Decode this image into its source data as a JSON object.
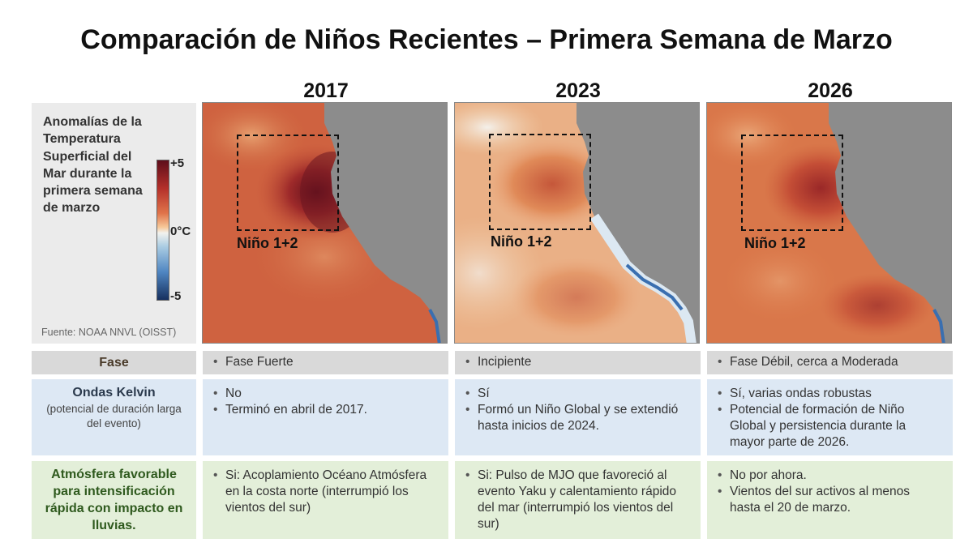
{
  "title": "Comparación de Niños Recientes – Primera Semana de Marzo",
  "years": [
    "2017",
    "2023",
    "2026"
  ],
  "legend": {
    "description": "Anomalías de la Temperatura Superficial del Mar durante la primera semana de marzo",
    "scale_max": "+5",
    "scale_mid": "0°C",
    "scale_min": "-5",
    "source": "Fuente: NOAA NNVL (OISST)"
  },
  "region_label": "Niño 1+2",
  "colors": {
    "land": "#8c8c8c",
    "row_fase": "#d9d9d9",
    "row_kelvin": "#dde8f4",
    "row_atmosfera": "#e3efd9",
    "fase_label": "#4a3b2a",
    "kelvin_label": "#2b3a4d",
    "atmosfera_label": "#2f5a1e"
  },
  "rows": {
    "fase": {
      "label": "Fase",
      "cells": [
        [
          "Fase Fuerte"
        ],
        [
          "Incipiente"
        ],
        [
          "Fase Débil, cerca a Moderada"
        ]
      ]
    },
    "kelvin": {
      "label": "Ondas Kelvin",
      "sublabel": "(potencial de duración larga del evento)",
      "cells": [
        [
          "No",
          "Terminó en abril de 2017."
        ],
        [
          "Sí",
          "Formó un Niño Global y se extendió hasta inicios de 2024."
        ],
        [
          "Sí, varias ondas robustas",
          "Potencial de formación de Niño Global y persistencia durante la mayor parte de 2026."
        ]
      ]
    },
    "atmosfera": {
      "label": "Atmósfera favorable para intensificación rápida con impacto en lluvias.",
      "cells": [
        [
          "Si: Acoplamiento Océano Atmósfera en la costa norte (interrumpió los vientos del sur)"
        ],
        [
          "Si: Pulso de MJO que favoreció al evento Yaku y calentamiento rápido del mar (interrumpió los vientos del sur)"
        ],
        [
          "No por ahora.",
          "Vientos del sur activos al menos hasta el 20 de marzo."
        ]
      ]
    }
  }
}
